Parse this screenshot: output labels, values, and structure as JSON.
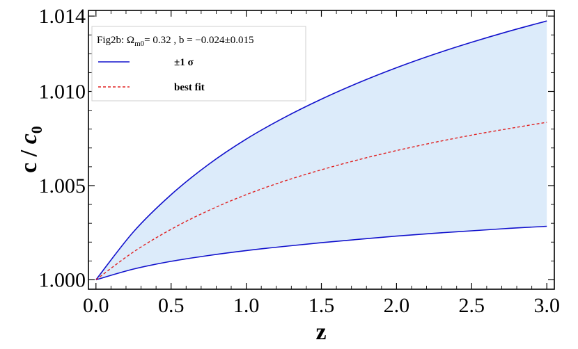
{
  "chart_data": {
    "type": "line",
    "xlabel": "z",
    "ylabel": "c / c0",
    "xlim": [
      -0.05,
      3.05
    ],
    "ylim": [
      0.9995,
      1.0143
    ],
    "x_ticks": [
      "0.0",
      "0.5",
      "1.0",
      "1.5",
      "2.0",
      "2.5",
      "3.0"
    ],
    "y_ticks": [
      "1.000",
      "1.005",
      "1.010",
      "1.014"
    ],
    "x": [
      0.0,
      0.25,
      0.5,
      0.75,
      1.0,
      1.25,
      1.5,
      1.75,
      2.0,
      2.25,
      2.5,
      2.75,
      3.0
    ],
    "band": {
      "lower": [
        1.0,
        1.00057,
        1.00098,
        1.00129,
        1.00155,
        1.00177,
        1.00197,
        1.00215,
        1.00232,
        1.00247,
        1.0026,
        1.00273,
        1.00284
      ],
      "upper": [
        1.0,
        1.00255,
        1.00452,
        1.00613,
        1.00747,
        1.0086,
        1.00959,
        1.01047,
        1.01126,
        1.01197,
        1.01261,
        1.0132,
        1.01374
      ],
      "fill": "#dcebfa"
    },
    "series": [
      {
        "name": "±1 σ",
        "style": "solid",
        "color": "#1010cc",
        "values_key": "band"
      },
      {
        "name": "best fit",
        "style": "dashed",
        "color": "#e02020",
        "values": [
          1.0,
          1.00148,
          1.00268,
          1.00368,
          1.00452,
          1.00523,
          1.00584,
          1.00638,
          1.00686,
          1.00729,
          1.00768,
          1.00803,
          1.00836
        ]
      }
    ],
    "legend": {
      "title_prefix": "Fig2b: Ω",
      "title_sub": "m0",
      "title_suffix": "= 0.32 , b = −0.024±0.015",
      "position": "top-left"
    },
    "grid": false
  }
}
